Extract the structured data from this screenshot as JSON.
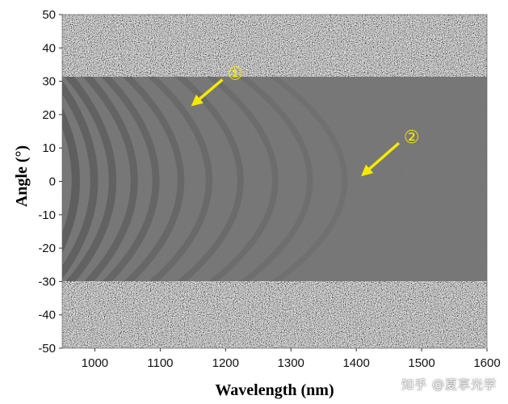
{
  "chart_data": {
    "type": "heatmap",
    "xlabel": "Wavelength (nm)",
    "ylabel": "Angle (°)",
    "xlim": [
      950,
      1600
    ],
    "ylim": [
      -50,
      50
    ],
    "x_ticks": [
      1000,
      1100,
      1200,
      1300,
      1400,
      1500,
      1600
    ],
    "y_ticks": [
      50,
      40,
      30,
      20,
      10,
      0,
      -10,
      -20,
      -30,
      -40,
      -50
    ],
    "colormap": "grayscale",
    "grid": false,
    "signal_region_angle": [
      -30,
      31
    ],
    "fringe_vertex_wavelengths": [
      990,
      1020,
      1050,
      1085,
      1120,
      1160,
      1205,
      1255,
      1310,
      1365,
      1420
    ],
    "annotations": [
      {
        "label": "①",
        "arrow_tip": [
          1150,
          23
        ],
        "text_at": [
          1210,
          30
        ]
      },
      {
        "label": "②",
        "arrow_tip": [
          1410,
          2
        ],
        "text_at": [
          1480,
          11
        ]
      }
    ],
    "annotation_color": "#f5ea00"
  },
  "watermark": "知乎 @夏享光学"
}
